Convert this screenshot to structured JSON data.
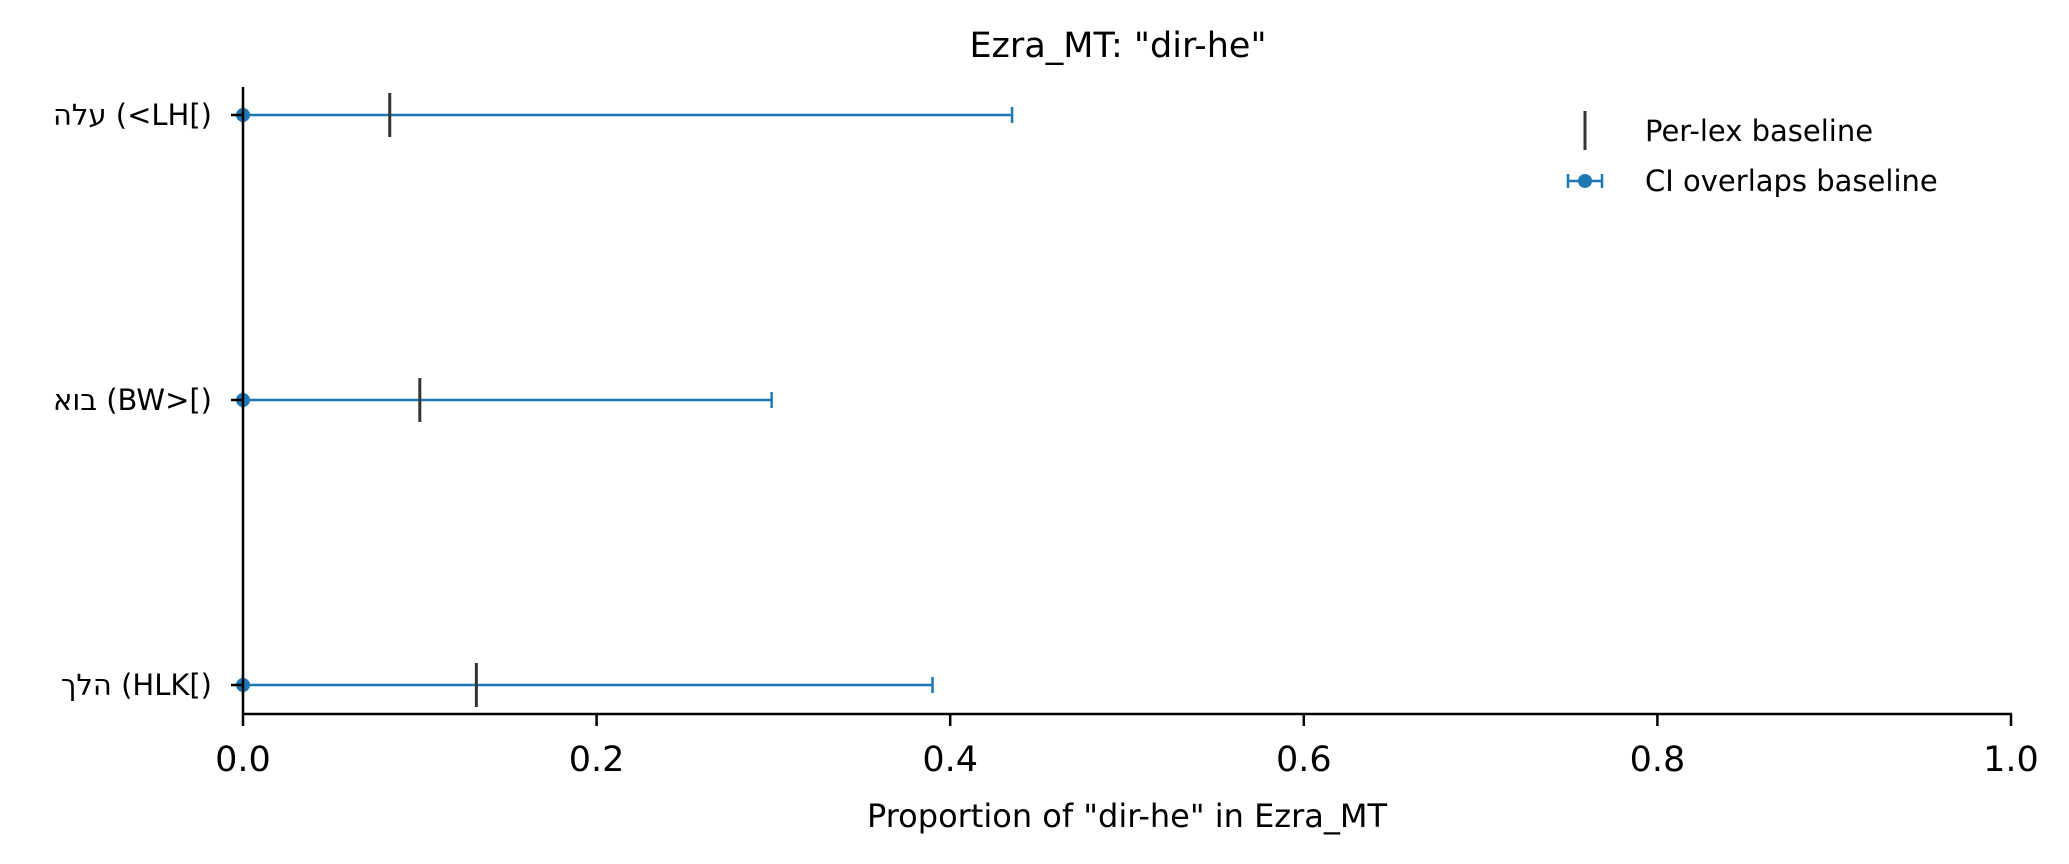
{
  "chart_data": {
    "type": "errorbar",
    "title": "Ezra_MT: \"dir-he\"",
    "xlabel": "Proportion of \"dir-he\" in Ezra_MT",
    "ylabel": "",
    "xlim": [
      0.0,
      1.0
    ],
    "x_ticks": [
      "0.0",
      "0.2",
      "0.4",
      "0.6",
      "0.8",
      "1.0"
    ],
    "categories": [
      "עלה (<LH[)",
      "בוא (BW>[)",
      "הלך (HLK[)"
    ],
    "series": [
      {
        "name": "CI overlaps baseline",
        "color": "#1f77b4",
        "points": [
          {
            "category": "עלה (<LH[)",
            "value": 0.0,
            "ci_low": 0.0,
            "ci_high": 0.435
          },
          {
            "category": "בוא (BW>[)",
            "value": 0.0,
            "ci_low": 0.0,
            "ci_high": 0.299
          },
          {
            "category": "הלך (HLK[)",
            "value": 0.0,
            "ci_low": 0.0,
            "ci_high": 0.39
          }
        ]
      },
      {
        "name": "Per-lex baseline",
        "color": "#333333",
        "points": [
          {
            "category": "עלה (<LH[)",
            "value": 0.083
          },
          {
            "category": "בוא (BW>[)",
            "value": 0.1
          },
          {
            "category": "הלך (HLK[)",
            "value": 0.132
          }
        ]
      }
    ],
    "legend": {
      "position": "top-right",
      "entries": [
        "Per-lex baseline",
        "CI overlaps baseline"
      ]
    },
    "grid": false
  }
}
